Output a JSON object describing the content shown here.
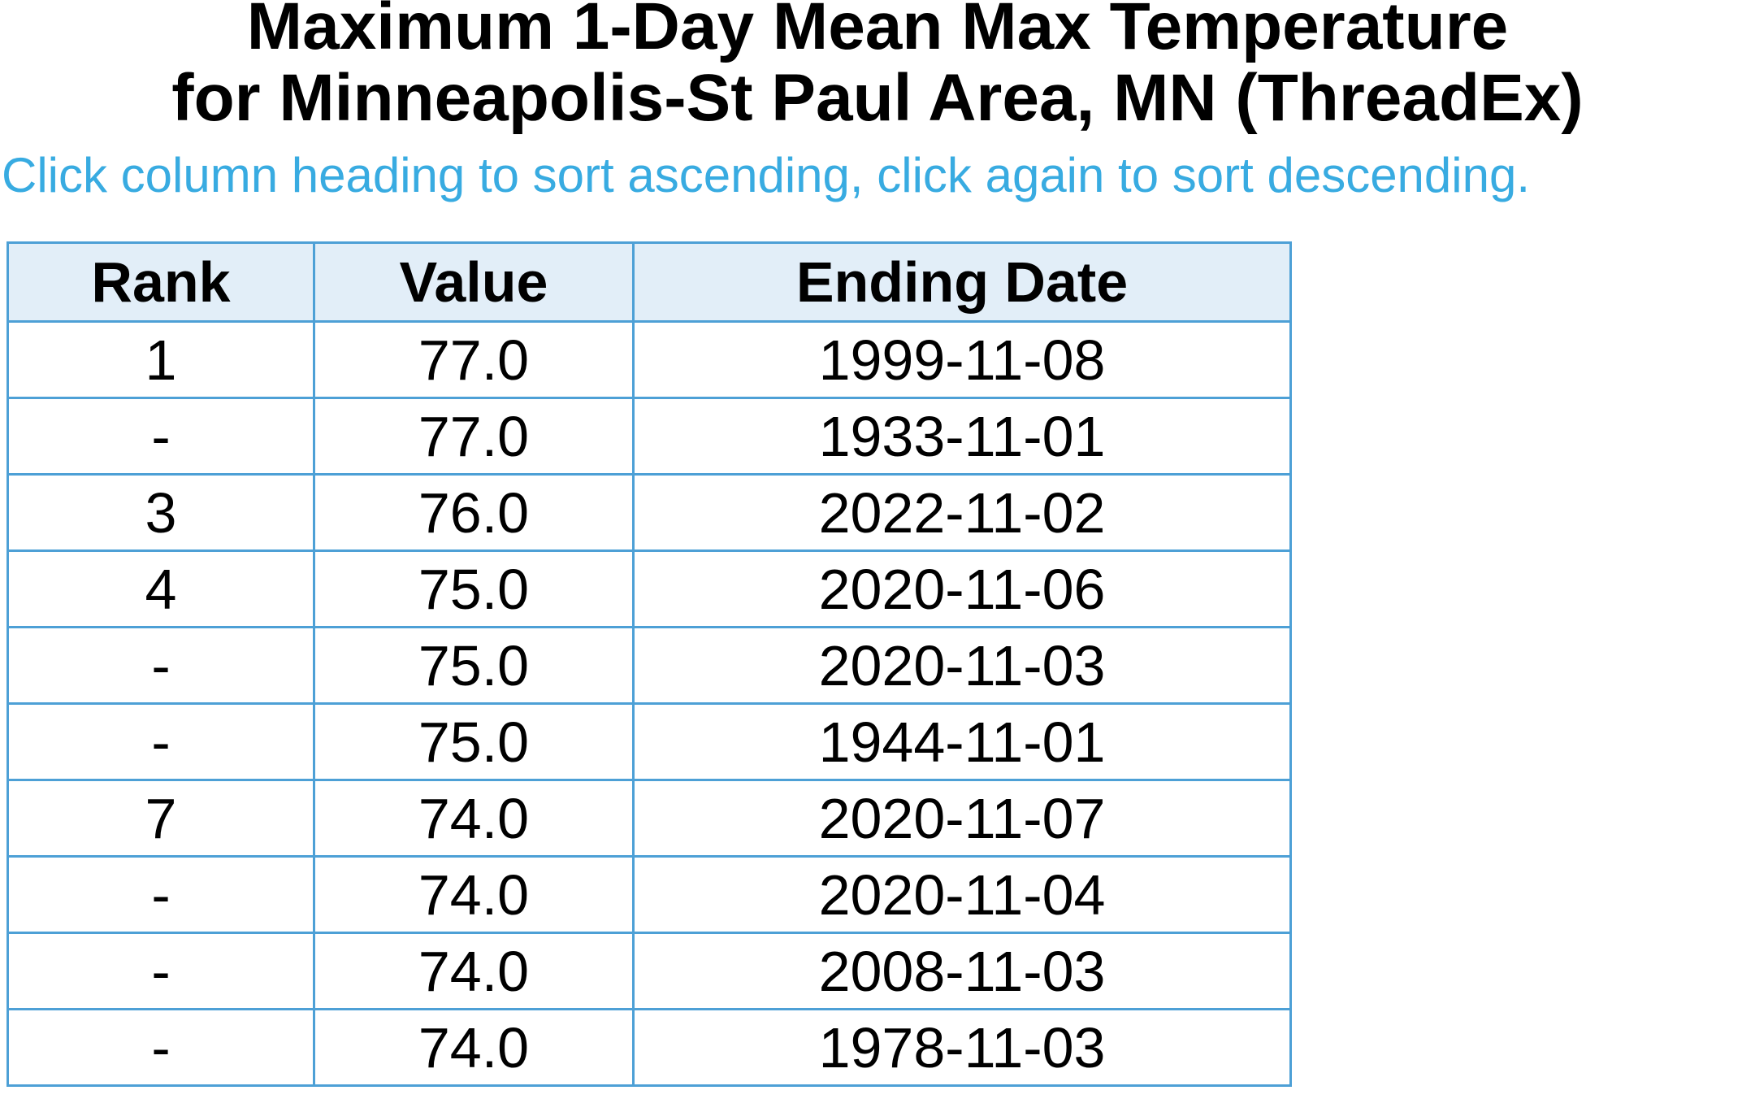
{
  "page": {
    "title_line1": "Maximum 1-Day Mean Max Temperature",
    "title_line2": "for Minneapolis-St Paul Area, MN (ThreadEx)",
    "subtitle": "Click column heading to sort ascending, click again to sort descending."
  },
  "colors": {
    "border_blue": "#4da0d6",
    "header_bg": "#e2eef8",
    "subtitle_blue": "#38abe1",
    "text": "#000000",
    "page_bg": "#ffffff"
  },
  "table": {
    "columns": [
      "Rank",
      "Value",
      "Ending Date"
    ],
    "rows": [
      {
        "rank": "1",
        "value": "77.0",
        "ending_date": "1999-11-08"
      },
      {
        "rank": "-",
        "value": "77.0",
        "ending_date": "1933-11-01"
      },
      {
        "rank": "3",
        "value": "76.0",
        "ending_date": "2022-11-02"
      },
      {
        "rank": "4",
        "value": "75.0",
        "ending_date": "2020-11-06"
      },
      {
        "rank": "-",
        "value": "75.0",
        "ending_date": "2020-11-03"
      },
      {
        "rank": "-",
        "value": "75.0",
        "ending_date": "1944-11-01"
      },
      {
        "rank": "7",
        "value": "74.0",
        "ending_date": "2020-11-07"
      },
      {
        "rank": "-",
        "value": "74.0",
        "ending_date": "2020-11-04"
      },
      {
        "rank": "-",
        "value": "74.0",
        "ending_date": "2008-11-03"
      },
      {
        "rank": "-",
        "value": "74.0",
        "ending_date": "1978-11-03"
      }
    ]
  }
}
